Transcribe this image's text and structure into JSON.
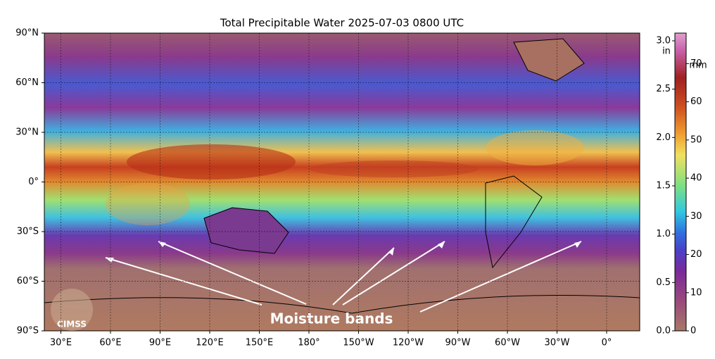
{
  "title": "Total Precipitable Water  2025-07-03 0800 UTC",
  "map": {
    "xlim": [
      20,
      380
    ],
    "ylim": [
      -90,
      90
    ],
    "lat_ticks": [
      {
        "value": 90,
        "label": "90°N"
      },
      {
        "value": 60,
        "label": "60°N"
      },
      {
        "value": 30,
        "label": "30°N"
      },
      {
        "value": 0,
        "label": "0°"
      },
      {
        "value": -30,
        "label": "30°S"
      },
      {
        "value": -60,
        "label": "60°S"
      },
      {
        "value": -90,
        "label": "90°S"
      }
    ],
    "lon_ticks": [
      {
        "value": 30,
        "label": "30°E"
      },
      {
        "value": 60,
        "label": "60°E"
      },
      {
        "value": 90,
        "label": "90°E"
      },
      {
        "value": 120,
        "label": "120°E"
      },
      {
        "value": 150,
        "label": "150°E"
      },
      {
        "value": 180,
        "label": "180°"
      },
      {
        "value": 210,
        "label": "150°W"
      },
      {
        "value": 240,
        "label": "120°W"
      },
      {
        "value": 270,
        "label": "90°W"
      },
      {
        "value": 300,
        "label": "60°W"
      },
      {
        "value": 330,
        "label": "30°W"
      },
      {
        "value": 360,
        "label": "0°"
      }
    ]
  },
  "colorbar": {
    "in_label": "in",
    "mm_label": "mm",
    "in_lim": [
      0,
      3.08
    ],
    "mm_lim": [
      0,
      78
    ],
    "in_ticks": [
      {
        "value": 0,
        "label": "0.0"
      },
      {
        "value": 0.5,
        "label": "0.5"
      },
      {
        "value": 1,
        "label": "1.0"
      },
      {
        "value": 1.5,
        "label": "1.5"
      },
      {
        "value": 2,
        "label": "2.0"
      },
      {
        "value": 2.5,
        "label": "2.5"
      },
      {
        "value": 3,
        "label": "3.0"
      }
    ],
    "mm_ticks": [
      0,
      10,
      20,
      30,
      40,
      50,
      60,
      70
    ]
  },
  "annotation": "Moisture bands",
  "logo": "CIMSS"
}
